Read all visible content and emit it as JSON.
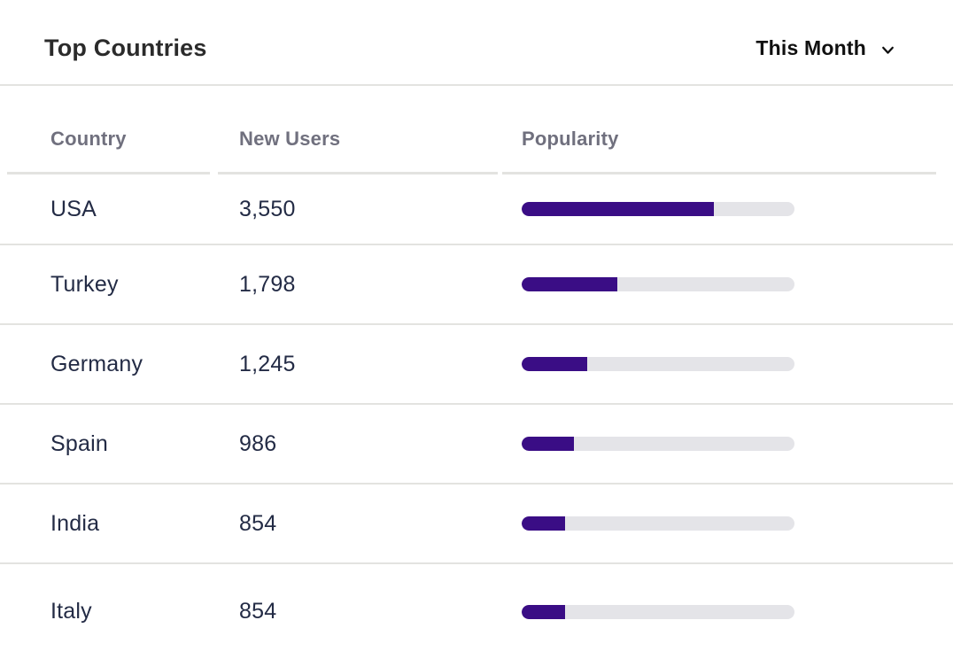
{
  "header": {
    "title": "Top Countries",
    "period_selector": {
      "label": "This Month",
      "icon": "chevron-down-icon"
    }
  },
  "table": {
    "columns": [
      {
        "key": "country",
        "label": "Country"
      },
      {
        "key": "new_users",
        "label": "New Users"
      },
      {
        "key": "popularity",
        "label": "Popularity"
      }
    ],
    "rows": [
      {
        "country": "USA",
        "new_users": "3,550",
        "popularity_pct": 70.5
      },
      {
        "country": "Turkey",
        "new_users": "1,798",
        "popularity_pct": 35
      },
      {
        "country": "Germany",
        "new_users": "1,245",
        "popularity_pct": 24
      },
      {
        "country": "Spain",
        "new_users": "986",
        "popularity_pct": 19
      },
      {
        "country": "India",
        "new_users": "854",
        "popularity_pct": 16
      },
      {
        "country": "Italy",
        "new_users": "854",
        "popularity_pct": 16
      }
    ]
  },
  "colors": {
    "bar_fill": "#3a0d85",
    "bar_track": "#e4e4e8",
    "divider": "#e3e3e0",
    "title_text": "#2b2b2b",
    "period_text": "#101010",
    "column_header_text": "#70707e",
    "row_text": "#232b45"
  },
  "chart_data": {
    "type": "table",
    "title": "Top Countries",
    "period": "This Month",
    "columns": [
      "Country",
      "New Users",
      "Popularity"
    ],
    "rows": [
      {
        "country": "USA",
        "new_users": 3550,
        "popularity_pct": 70.5
      },
      {
        "country": "Turkey",
        "new_users": 1798,
        "popularity_pct": 35
      },
      {
        "country": "Germany",
        "new_users": 1245,
        "popularity_pct": 24
      },
      {
        "country": "Spain",
        "new_users": 986,
        "popularity_pct": 19
      },
      {
        "country": "India",
        "new_users": 854,
        "popularity_pct": 16
      },
      {
        "country": "Italy",
        "new_users": 854,
        "popularity_pct": 16
      }
    ],
    "layout": {
      "bar_color": "#3a0d85",
      "bar_track_color": "#e4e4e8",
      "bar_scale": "percent_of_track"
    }
  }
}
